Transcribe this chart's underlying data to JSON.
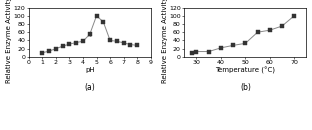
{
  "chart_a": {
    "xlabel": "pH",
    "ylabel": "Relative Enzyme Activity (%)",
    "label": "(a)",
    "xlim": [
      0,
      9
    ],
    "ylim": [
      0,
      120
    ],
    "xticks": [
      0,
      1,
      2,
      3,
      4,
      5,
      6,
      7,
      8,
      9
    ],
    "yticks": [
      0,
      20,
      40,
      60,
      80,
      100,
      120
    ],
    "x": [
      1,
      1.5,
      2,
      2.5,
      3,
      3.5,
      4,
      4.5,
      5,
      5.5,
      6,
      6.5,
      7,
      7.5,
      8
    ],
    "y": [
      10,
      14,
      20,
      26,
      31,
      35,
      38,
      55,
      100,
      85,
      40,
      38,
      34,
      30,
      28
    ],
    "yerr": [
      1.5,
      1.5,
      1.5,
      1.5,
      1.5,
      1.5,
      2,
      3,
      2,
      3,
      2,
      2,
      2,
      2,
      2
    ]
  },
  "chart_b": {
    "xlabel": "Temperature (°C)",
    "ylabel": "Relative Enzyme Activity (%)",
    "label": "(b)",
    "xlim": [
      25,
      75
    ],
    "ylim": [
      0,
      120
    ],
    "xticks": [
      30,
      40,
      50,
      60,
      70
    ],
    "yticks": [
      0,
      20,
      40,
      60,
      80,
      100,
      120
    ],
    "x": [
      28,
      30,
      35,
      40,
      45,
      50,
      55,
      60,
      65,
      70
    ],
    "y": [
      10,
      13,
      13,
      22,
      28,
      33,
      60,
      65,
      75,
      100
    ],
    "yerr": [
      1.5,
      1.5,
      1.5,
      2,
      2,
      2,
      3,
      3,
      3,
      2
    ]
  },
  "line_color": "#888888",
  "marker": "s",
  "markersize": 2.5,
  "marker_color": "#333333",
  "capsize": 1.5,
  "elinewidth": 0.6,
  "linewidth": 0.7,
  "fontsize_label": 5.0,
  "fontsize_tick": 4.5,
  "fontsize_sublabel": 5.5
}
